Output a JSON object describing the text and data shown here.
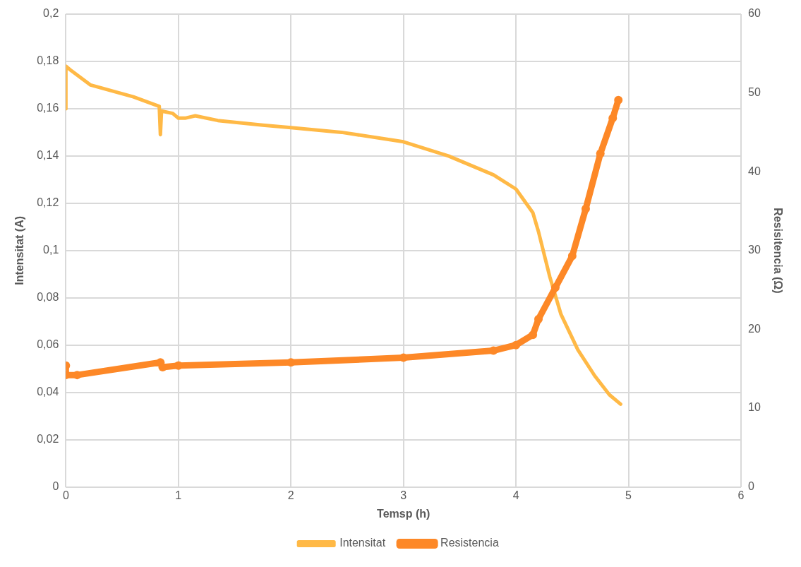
{
  "chart_data": {
    "type": "line",
    "xlabel": "Temsp (h)",
    "ylabel": "Intensitat (A)",
    "y2label": "Resisitencia (Ω)",
    "xlim": [
      0,
      6
    ],
    "xticks": [
      0,
      1,
      2,
      3,
      4,
      5,
      6
    ],
    "ylim": [
      0,
      0.2
    ],
    "yticks": [
      0,
      {
        "value": 0.02,
        "label": "0,02"
      },
      {
        "value": 0.04,
        "label": "0,04"
      },
      {
        "value": 0.06,
        "label": "0,06"
      },
      {
        "value": 0.08,
        "label": "0,08"
      },
      {
        "value": 0.1,
        "label": "0,1"
      },
      {
        "value": 0.12,
        "label": "0,12"
      },
      {
        "value": 0.14,
        "label": "0,14"
      },
      {
        "value": 0.16,
        "label": "0,16"
      },
      {
        "value": 0.18,
        "label": "0,18"
      },
      {
        "value": 0.2,
        "label": "0,2"
      }
    ],
    "y2lim": [
      0,
      60
    ],
    "y2ticks": [
      0,
      10,
      20,
      30,
      40,
      50,
      60
    ],
    "grid": true,
    "legend": "bottom",
    "series": [
      {
        "name": "Intensitat",
        "color": "#ffb946",
        "marker": "none",
        "x": [
          0,
          0,
          0.05,
          0.22,
          0.6,
          0.83,
          0.84,
          0.85,
          0.95,
          1.0,
          1.06,
          1.15,
          1.35,
          1.75,
          2.0,
          2.45,
          3.0,
          3.4,
          3.8,
          4.0,
          4.15,
          4.2,
          4.3,
          4.4,
          4.55,
          4.7,
          4.83,
          4.93
        ],
        "values": [
          0.16,
          0.178,
          0.176,
          0.17,
          0.165,
          0.161,
          0.149,
          0.159,
          0.158,
          0.156,
          0.156,
          0.157,
          0.155,
          0.153,
          0.152,
          0.15,
          0.146,
          0.14,
          0.132,
          0.126,
          0.116,
          0.108,
          0.089,
          0.073,
          0.058,
          0.047,
          0.039,
          0.035
        ]
      },
      {
        "name": "Resistencia",
        "color": "#fd8827",
        "marker": "circle",
        "axis": "y2",
        "x": [
          0,
          0,
          0.1,
          0.84,
          0.86,
          1.0,
          2.0,
          3.0,
          3.8,
          4.0,
          4.15,
          4.2,
          4.35,
          4.5,
          4.62,
          4.75,
          4.86,
          4.91
        ],
        "values": [
          15.4,
          14.2,
          14.2,
          15.8,
          15.2,
          15.4,
          15.8,
          16.4,
          17.3,
          18.0,
          19.3,
          21.3,
          25.3,
          29.3,
          35.3,
          42.3,
          46.8,
          49.1
        ]
      }
    ]
  }
}
